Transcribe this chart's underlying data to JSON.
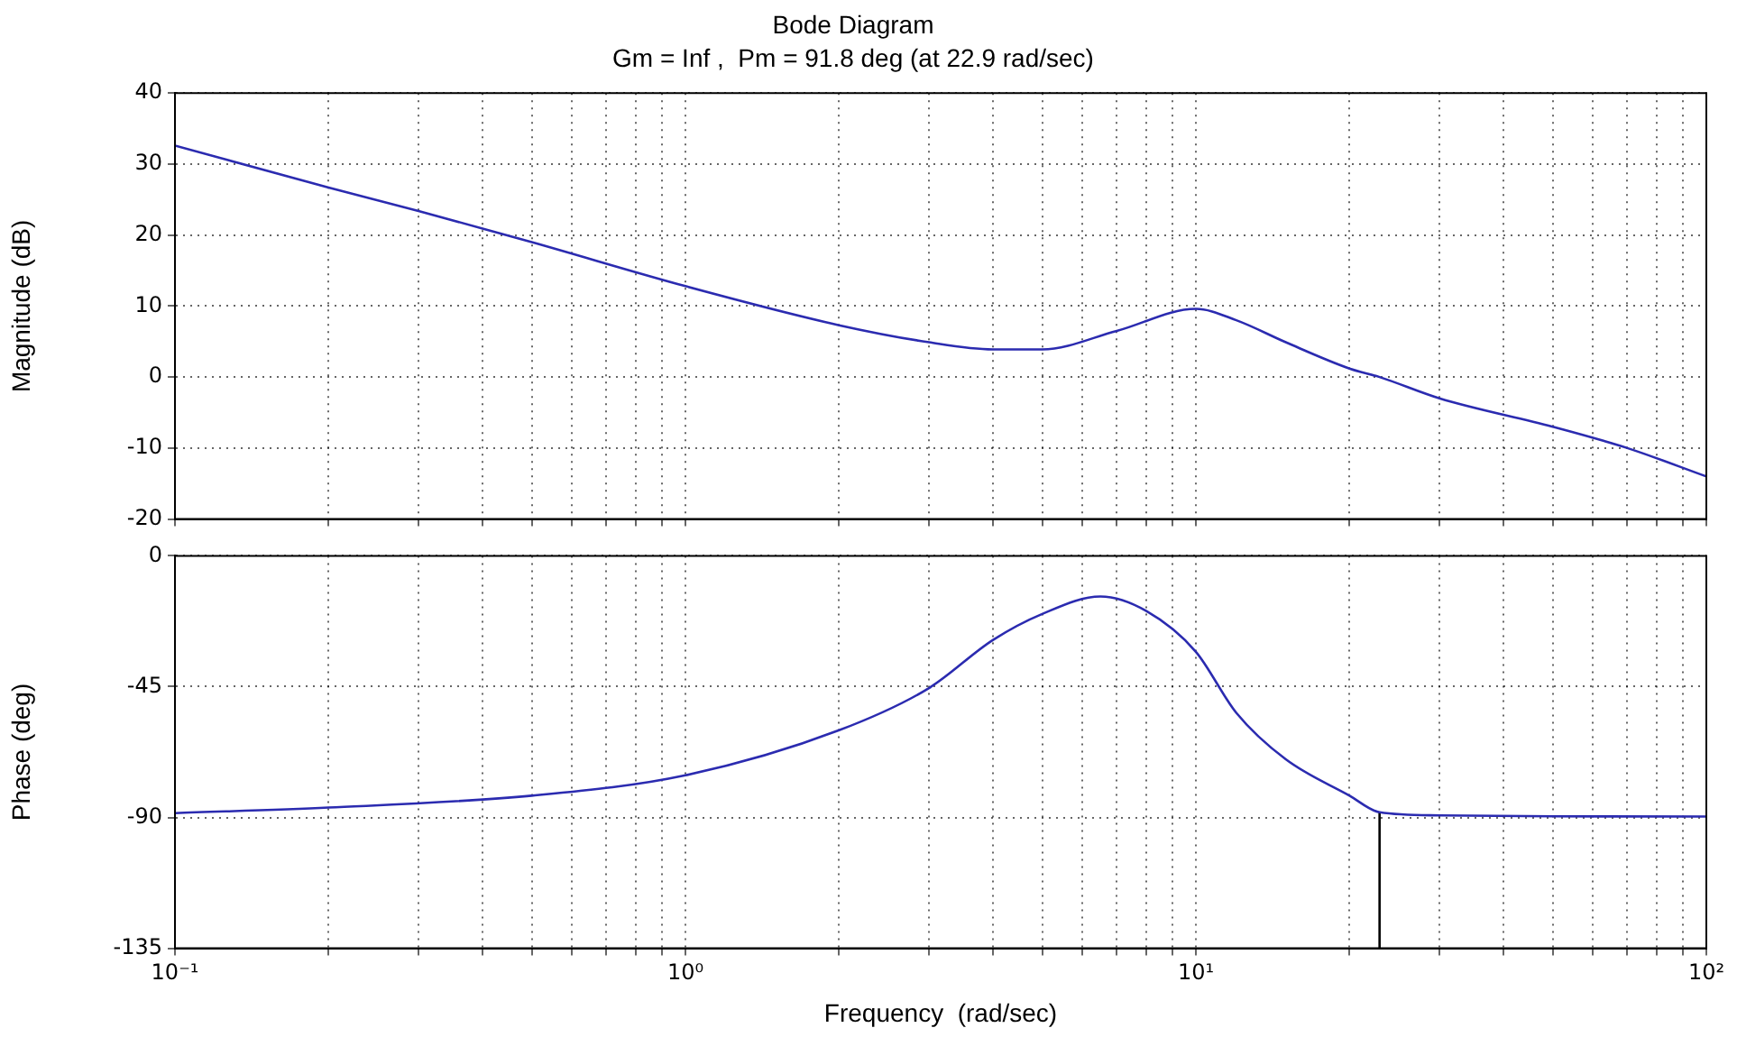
{
  "chart_data": [
    {
      "type": "line",
      "title": "Bode Diagram",
      "subtitle": "Gm = Inf ,  Pm = 91.8 deg (at 22.9 rad/sec)",
      "ylabel": "Magnitude (dB)",
      "log": "x",
      "grid": true,
      "marker": "none",
      "tick_labels": "y",
      "xlim": [
        0.1,
        100
      ],
      "xticks": [
        {
          "value": 0.1,
          "label": null
        },
        {
          "value": 0.2,
          "label": null
        },
        {
          "value": 0.3,
          "label": null
        },
        {
          "value": 0.4,
          "label": null
        },
        {
          "value": 0.5,
          "label": null
        },
        {
          "value": 0.6,
          "label": null
        },
        {
          "value": 0.7,
          "label": null
        },
        {
          "value": 0.8,
          "label": null
        },
        {
          "value": 0.9,
          "label": null
        },
        {
          "value": 1,
          "label": null
        },
        {
          "value": 2,
          "label": null
        },
        {
          "value": 3,
          "label": null
        },
        {
          "value": 4,
          "label": null
        },
        {
          "value": 5,
          "label": null
        },
        {
          "value": 6,
          "label": null
        },
        {
          "value": 7,
          "label": null
        },
        {
          "value": 8,
          "label": null
        },
        {
          "value": 9,
          "label": null
        },
        {
          "value": 10,
          "label": null
        },
        {
          "value": 20,
          "label": null
        },
        {
          "value": 30,
          "label": null
        },
        {
          "value": 40,
          "label": null
        },
        {
          "value": 50,
          "label": null
        },
        {
          "value": 60,
          "label": null
        },
        {
          "value": 70,
          "label": null
        },
        {
          "value": 80,
          "label": null
        },
        {
          "value": 90,
          "label": null
        },
        {
          "value": 100,
          "label": null
        }
      ],
      "ylim": [
        -20,
        40
      ],
      "yticks": [
        -20,
        -10,
        0,
        10,
        20,
        30,
        40
      ],
      "x": [
        0.1,
        0.2,
        0.3,
        0.5,
        1,
        2,
        3,
        4,
        5,
        7,
        10,
        12,
        15,
        20,
        22.9,
        30,
        50,
        70,
        100
      ],
      "series": [
        {
          "color": "#2b2bb0",
          "values": [
            32.6,
            26.7,
            23.4,
            19,
            12.8,
            7.3,
            4.9,
            3.9,
            3.9,
            6.5,
            9.6,
            8,
            4.9,
            1.2,
            0,
            -3,
            -7,
            -10,
            -14
          ]
        }
      ]
    },
    {
      "type": "line",
      "xlabel": "Frequency  (rad/sec)",
      "ylabel": "Phase (deg)",
      "log": "x",
      "grid": true,
      "marker": "none",
      "xlim": [
        0.1,
        100
      ],
      "xticks": [
        {
          "value": 0.1,
          "label": "10⁻¹"
        },
        {
          "value": 0.2,
          "label": null
        },
        {
          "value": 0.3,
          "label": null
        },
        {
          "value": 0.4,
          "label": null
        },
        {
          "value": 0.5,
          "label": null
        },
        {
          "value": 0.6,
          "label": null
        },
        {
          "value": 0.7,
          "label": null
        },
        {
          "value": 0.8,
          "label": null
        },
        {
          "value": 0.9,
          "label": null
        },
        {
          "value": 1,
          "label": "10⁰"
        },
        {
          "value": 2,
          "label": null
        },
        {
          "value": 3,
          "label": null
        },
        {
          "value": 4,
          "label": null
        },
        {
          "value": 5,
          "label": null
        },
        {
          "value": 6,
          "label": null
        },
        {
          "value": 7,
          "label": null
        },
        {
          "value": 8,
          "label": null
        },
        {
          "value": 9,
          "label": null
        },
        {
          "value": 10,
          "label": "10¹"
        },
        {
          "value": 20,
          "label": null
        },
        {
          "value": 30,
          "label": null
        },
        {
          "value": 40,
          "label": null
        },
        {
          "value": 50,
          "label": null
        },
        {
          "value": 60,
          "label": null
        },
        {
          "value": 70,
          "label": null
        },
        {
          "value": 80,
          "label": null
        },
        {
          "value": 90,
          "label": null
        },
        {
          "value": 100,
          "label": "10²"
        }
      ],
      "ylim": [
        -135,
        0
      ],
      "yticks": [
        -135,
        -90,
        -45,
        0
      ],
      "x": [
        0.1,
        0.2,
        0.5,
        1,
        2,
        3,
        4,
        5,
        6.5,
        8,
        10,
        12,
        15,
        20,
        22.9,
        30,
        50,
        100
      ],
      "series": [
        {
          "color": "#2b2bb0",
          "values": [
            -88.5,
            -86.6,
            -82.5,
            -75.5,
            -60,
            -45.5,
            -29,
            -20,
            -14,
            -19,
            -33,
            -54,
            -70,
            -82.5,
            -88.2,
            -89.3,
            -89.6,
            -89.7
          ]
        },
        {
          "color": "#000000",
          "x": [
            22.9,
            22.9
          ],
          "values": [
            -135,
            -88.2
          ]
        }
      ]
    }
  ]
}
